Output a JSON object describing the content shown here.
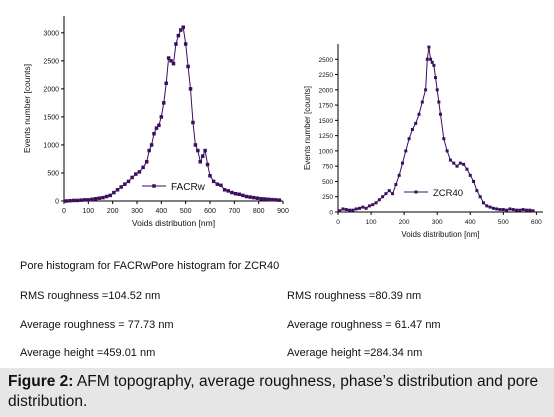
{
  "chart_data": [
    {
      "type": "line",
      "xlabel": "Voids distribution [nm]",
      "ylabel": "Events number [counts]",
      "xlim": [
        0,
        900
      ],
      "ylim": [
        0,
        3300
      ],
      "xticks": [
        0,
        100,
        200,
        300,
        400,
        500,
        600,
        700,
        800,
        900
      ],
      "yticks": [
        0,
        500,
        1000,
        1500,
        2000,
        2500,
        3000
      ],
      "legend_position": "right-middle",
      "color": "#3a0f5c",
      "series": [
        {
          "name": "FACRw",
          "x": [
            10,
            25,
            40,
            55,
            70,
            85,
            100,
            115,
            130,
            145,
            160,
            175,
            190,
            205,
            220,
            235,
            250,
            265,
            280,
            295,
            310,
            325,
            340,
            350,
            360,
            370,
            380,
            390,
            400,
            410,
            420,
            430,
            440,
            450,
            460,
            470,
            480,
            490,
            500,
            510,
            520,
            530,
            540,
            550,
            560,
            570,
            580,
            590,
            600,
            615,
            630,
            645,
            660,
            675,
            690,
            705,
            720,
            735,
            750,
            765,
            780,
            795,
            810,
            825,
            840,
            855,
            870,
            885
          ],
          "y": [
            0,
            5,
            10,
            10,
            15,
            20,
            20,
            30,
            40,
            50,
            60,
            80,
            100,
            150,
            200,
            250,
            300,
            350,
            420,
            480,
            520,
            600,
            700,
            900,
            1000,
            1200,
            1300,
            1350,
            1500,
            1750,
            2100,
            2550,
            2500,
            2450,
            2800,
            2950,
            3050,
            3100,
            2800,
            2400,
            2000,
            1400,
            1000,
            900,
            700,
            800,
            900,
            650,
            450,
            350,
            300,
            280,
            200,
            180,
            150,
            130,
            120,
            100,
            80,
            70,
            60,
            50,
            40,
            35,
            30,
            25,
            20,
            15
          ]
        }
      ]
    },
    {
      "type": "line",
      "xlabel": "Voids distribution [nm]",
      "ylabel": "Events number [counts]",
      "xlim": [
        0,
        620
      ],
      "ylim": [
        0,
        2750
      ],
      "xticks": [
        0,
        100,
        200,
        300,
        400,
        500,
        600
      ],
      "yticks": [
        0,
        250,
        500,
        750,
        1000,
        1250,
        1500,
        1750,
        2000,
        2250,
        2500
      ],
      "legend_position": "right-middle",
      "color": "#3a0f5c",
      "series": [
        {
          "name": "ZCR40",
          "x": [
            5,
            15,
            25,
            35,
            45,
            55,
            65,
            75,
            85,
            95,
            105,
            115,
            125,
            135,
            145,
            155,
            165,
            175,
            185,
            195,
            205,
            215,
            225,
            235,
            245,
            255,
            265,
            270,
            275,
            280,
            285,
            290,
            295,
            300,
            305,
            310,
            320,
            330,
            340,
            350,
            360,
            370,
            380,
            390,
            400,
            410,
            420,
            430,
            440,
            450,
            460,
            470,
            480,
            490,
            500,
            510,
            520,
            530,
            540,
            550,
            560,
            570,
            580,
            590
          ],
          "y": [
            20,
            50,
            40,
            30,
            30,
            50,
            60,
            80,
            60,
            100,
            120,
            150,
            200,
            250,
            300,
            350,
            300,
            450,
            600,
            800,
            1000,
            1200,
            1350,
            1450,
            1600,
            1800,
            2000,
            2500,
            2700,
            2500,
            2450,
            2400,
            2200,
            2000,
            1800,
            1600,
            1200,
            1000,
            850,
            800,
            750,
            800,
            780,
            700,
            600,
            500,
            350,
            250,
            150,
            100,
            80,
            60,
            50,
            40,
            40,
            30,
            50,
            40,
            30,
            30,
            40,
            30,
            30,
            20
          ]
        }
      ]
    }
  ],
  "texts": {
    "pore_histogram": "Pore histogram for FACRwPore histogram for ZCR40",
    "rms_left": "RMS roughness =104.52 nm",
    "rms_right": "RMS roughness =80.39 nm",
    "avg_rough_left": "Average roughness = 77.73 nm",
    "avg_rough_right": "Average roughness = 61.47 nm",
    "avg_height_left": "Average height =459.01 nm",
    "avg_height_right": "Average height =284.34 nm"
  },
  "caption": {
    "label": "Figure 2:",
    "text": " AFM topography, average roughness, phase’s distribution and pore distribution."
  }
}
